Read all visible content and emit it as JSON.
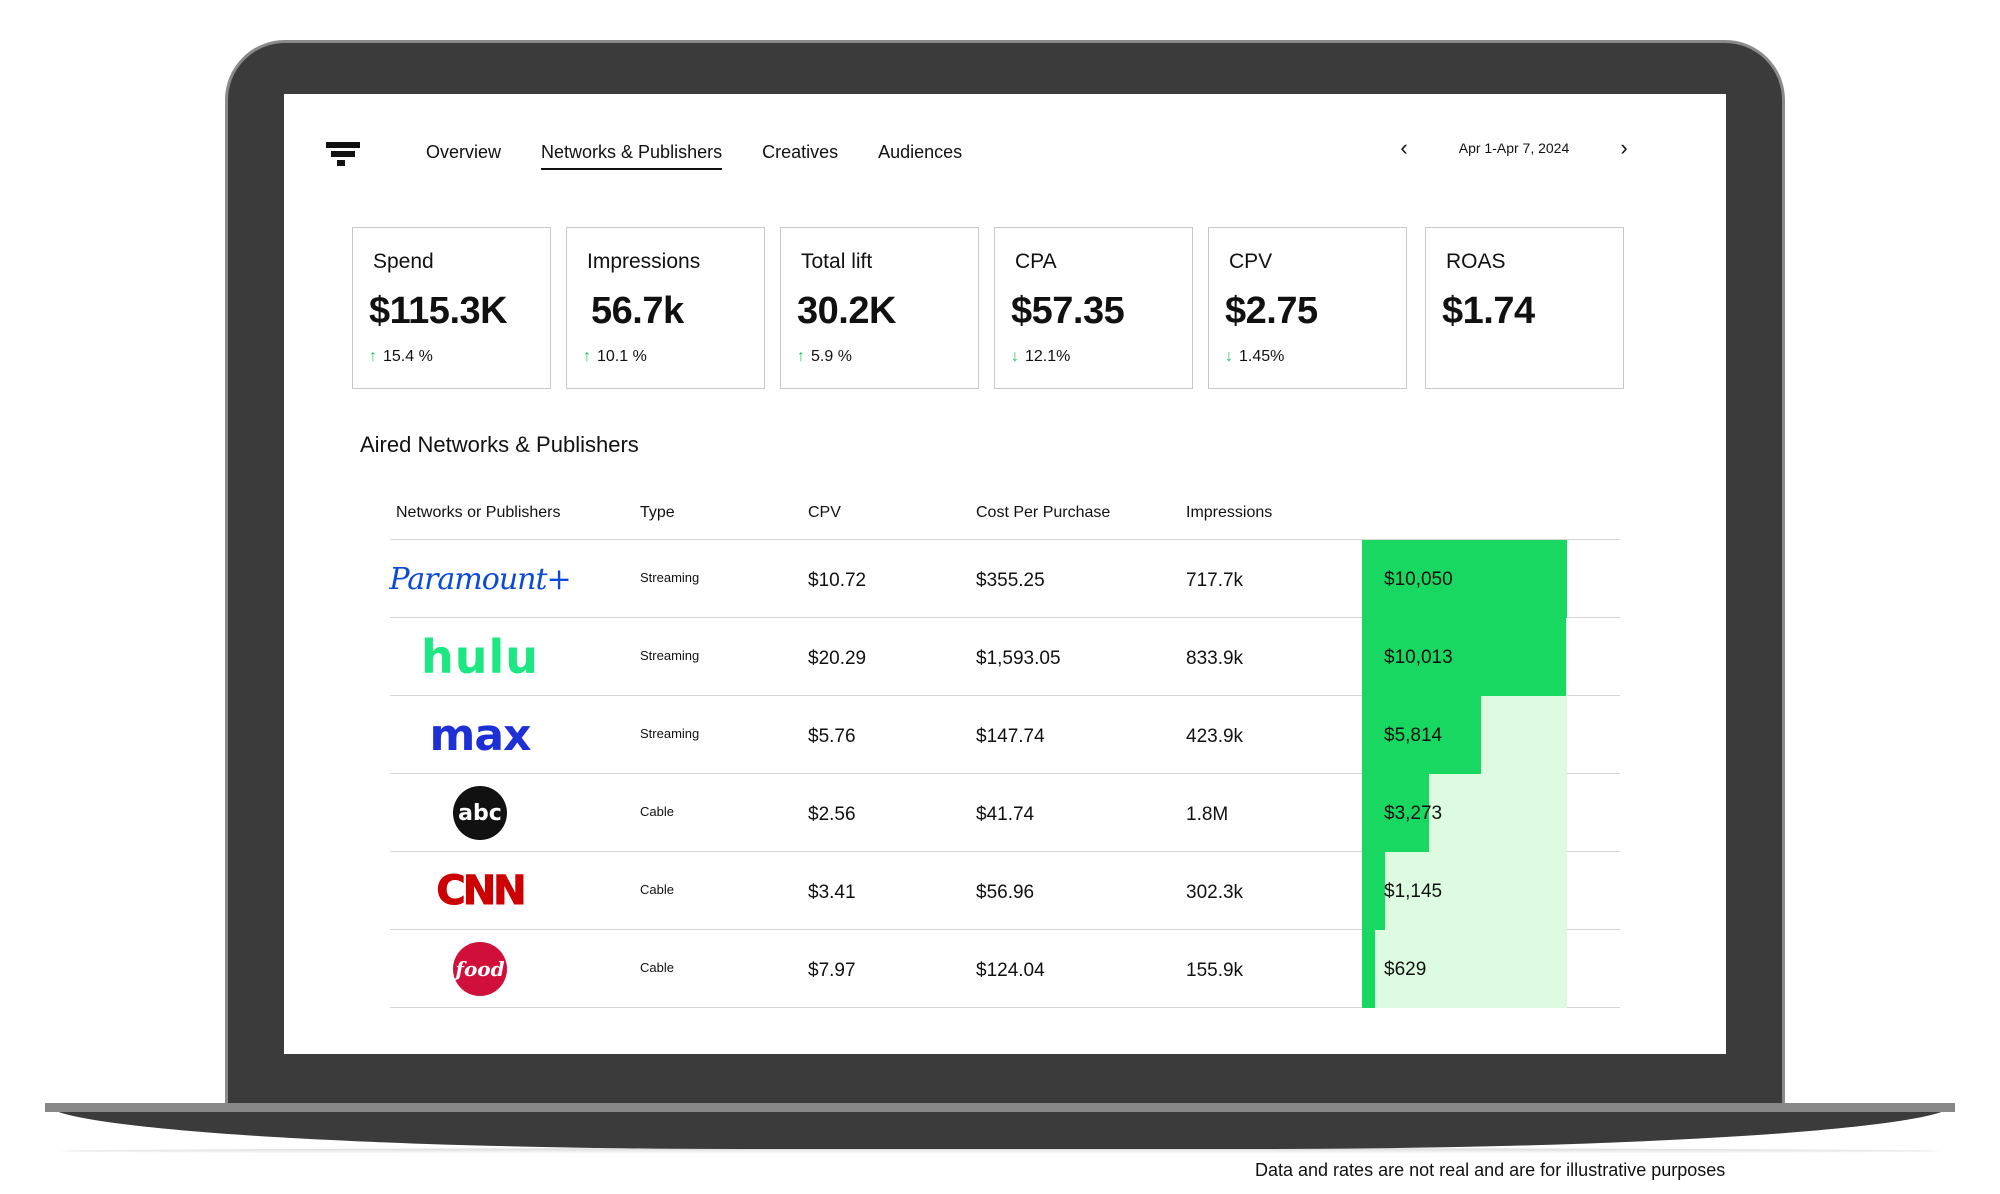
{
  "nav": {
    "tabs": [
      {
        "label": "Overview",
        "active": false
      },
      {
        "label": "Networks & Publishers",
        "active": true
      },
      {
        "label": "Creatives",
        "active": false
      },
      {
        "label": "Audiences",
        "active": false
      }
    ],
    "date_range": "Apr 1-Apr 7, 2024"
  },
  "kpis": [
    {
      "name": "Spend",
      "value": "$115.3K",
      "change": "15.4 %",
      "direction": "up"
    },
    {
      "name": "Impressions",
      "value": "56.7k",
      "change": "10.1 %",
      "direction": "up"
    },
    {
      "name": "Total lift",
      "value": "30.2K",
      "change": "5.9 %",
      "direction": "up"
    },
    {
      "name": "CPA",
      "value": "$57.35",
      "change": "12.1%",
      "direction": "down"
    },
    {
      "name": "CPV",
      "value": "$2.75",
      "change": "1.45%",
      "direction": "down"
    },
    {
      "name": "ROAS",
      "value": "$1.74",
      "change": "",
      "direction": ""
    }
  ],
  "section_title": "Aired Networks & Publishers",
  "table": {
    "headers": [
      "Networks or Publishers",
      "Type",
      "CPV",
      "Cost Per Purchase",
      "Impressions"
    ],
    "rows": [
      {
        "logo_text": "Paramount+",
        "logo_icon": "paramount-plus-logo",
        "type": "Streaming",
        "cpv": "$10.72",
        "cpp": "$355.25",
        "impressions": "717.7k",
        "spend": "$10,050",
        "spend_value": 10050
      },
      {
        "logo_text": "hulu",
        "logo_icon": "hulu-logo",
        "type": "Streaming",
        "cpv": "$20.29",
        "cpp": "$1,593.05",
        "impressions": "833.9k",
        "spend": "$10,013",
        "spend_value": 10013
      },
      {
        "logo_text": "max",
        "logo_icon": "max-logo",
        "type": "Streaming",
        "cpv": "$5.76",
        "cpp": "$147.74",
        "impressions": "423.9k",
        "spend": "$5,814",
        "spend_value": 5814
      },
      {
        "logo_text": "abc",
        "logo_icon": "abc-logo",
        "type": "Cable",
        "cpv": "$2.56",
        "cpp": "$41.74",
        "impressions": "1.8M",
        "spend": "$3,273",
        "spend_value": 3273
      },
      {
        "logo_text": "CNN",
        "logo_icon": "cnn-logo",
        "type": "Cable",
        "cpv": "$3.41",
        "cpp": "$56.96",
        "impressions": "302.3k",
        "spend": "$1,145",
        "spend_value": 1145
      },
      {
        "logo_text": "food",
        "logo_icon": "food-network-logo",
        "type": "Cable",
        "cpv": "$7.97",
        "cpp": "$124.04",
        "impressions": "155.9k",
        "spend": "$629",
        "spend_value": 629
      }
    ],
    "spend_max": 10050
  },
  "colors": {
    "bar_fill": "#19d862",
    "bar_track": "#dcfbe0",
    "up_arrow": "#1ec760"
  },
  "disclaimer": "Data and rates are not real and are for illustrative purposes"
}
